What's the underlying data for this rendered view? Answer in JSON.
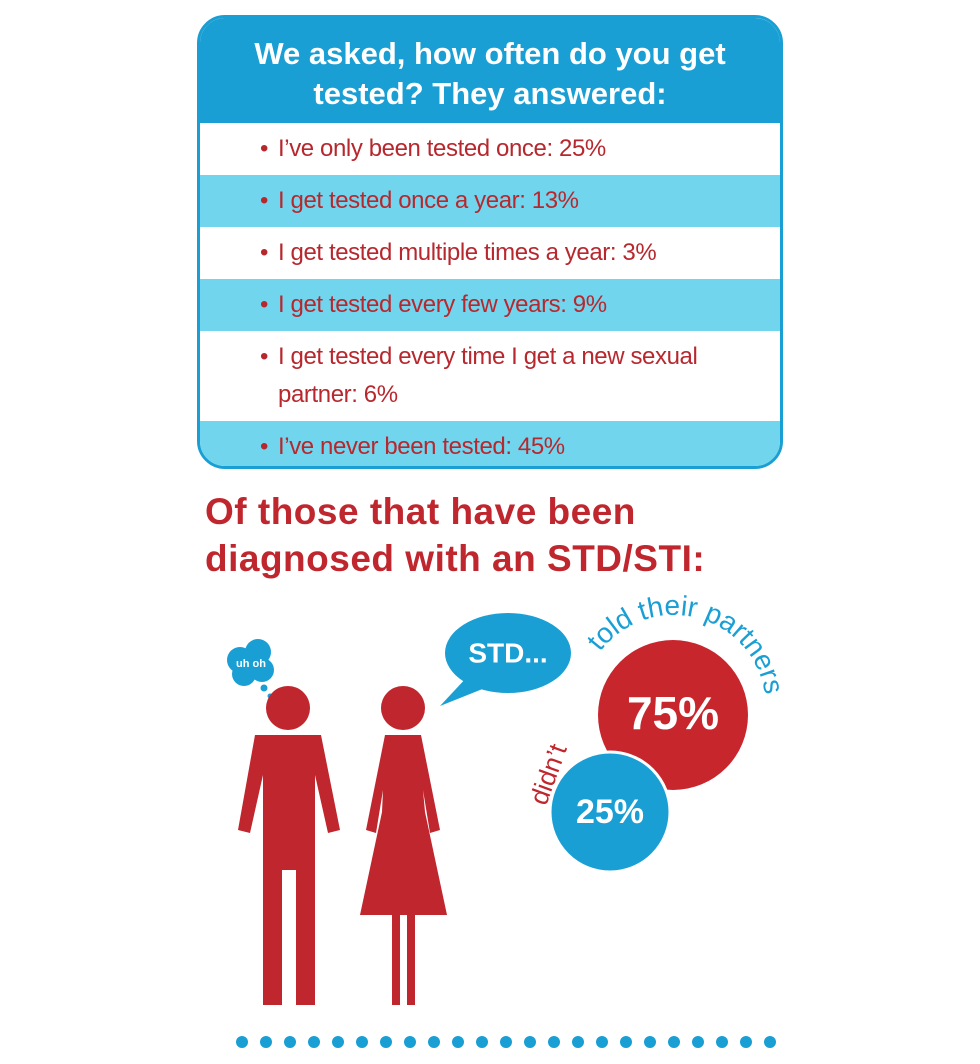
{
  "header": {
    "title": "We asked, how often do you get tested? They answered:"
  },
  "answers": [
    "I’ve only been tested once: 25%",
    "I get tested once a year: 13%",
    "I get tested multiple times a year: 3%",
    "I get tested every few years: 9%",
    "I get tested every time I get a new sexual partner: 6%",
    "I’ve never been tested: 45%"
  ],
  "heading": "Of those that have been diagnosed with an STD/STI:",
  "thought": "uh oh",
  "speech": "STD...",
  "told": {
    "label": "told their partners",
    "value": "75%"
  },
  "didnt": {
    "label": "didn’t",
    "value": "25%"
  }
}
